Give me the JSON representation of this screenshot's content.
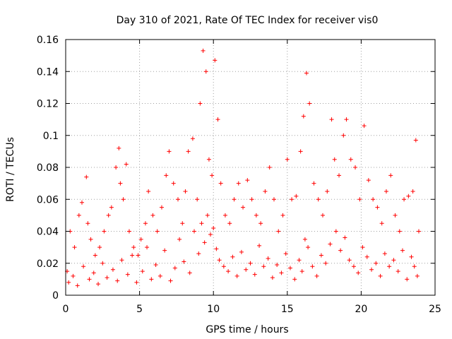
{
  "chart_data": {
    "type": "scatter",
    "title": "Day 310 of 2021, Rate Of TEC Index for receiver vis0",
    "xlabel": "GPS time / hours",
    "ylabel": "ROTI / TECUs",
    "xlim": [
      0,
      25
    ],
    "ylim": [
      0,
      0.16
    ],
    "x_ticks": [
      "0",
      "5",
      "10",
      "15",
      "20",
      "25"
    ],
    "y_ticks": [
      "0",
      "0.02",
      "0.04",
      "0.06",
      "0.08",
      "0.1",
      "0.12",
      "0.14",
      "0.16"
    ],
    "grid": true,
    "marker": "plus",
    "color": "#ff0000",
    "series": [
      {
        "x": [
          0.1,
          0.3,
          0.6,
          0.9,
          1.1,
          1.4,
          1.5,
          1.7,
          2.0,
          2.3,
          2.6,
          2.9,
          3.1,
          3.4,
          3.6,
          3.7,
          3.9,
          4.1,
          4.3,
          4.6,
          4.9,
          5.1,
          5.4,
          5.6,
          5.9,
          6.2,
          6.5,
          6.8,
          7.0,
          7.3,
          7.6,
          7.9,
          8.1,
          8.3,
          8.6,
          8.9,
          9.1,
          9.3,
          9.5,
          9.7,
          9.9,
          10.1,
          10.3,
          10.5,
          10.8,
          11.1,
          11.4,
          11.7,
          12.0,
          12.3,
          12.6,
          12.9,
          13.2,
          13.5,
          13.8,
          14.1,
          14.4,
          14.7,
          15.0,
          15.3,
          15.6,
          15.9,
          16.1,
          16.3,
          16.5,
          16.8,
          17.1,
          17.4,
          17.7,
          18.0,
          18.2,
          18.5,
          18.8,
          19.0,
          19.3,
          19.6,
          19.9,
          20.2,
          20.5,
          20.8,
          21.1,
          21.4,
          21.7,
          22.0,
          22.3,
          22.6,
          22.9,
          23.2,
          23.5,
          23.7,
          23.9,
          0.2,
          0.5,
          0.8,
          1.2,
          1.6,
          1.9,
          2.2,
          2.5,
          2.8,
          3.2,
          3.5,
          3.8,
          4.2,
          4.5,
          4.8,
          5.2,
          5.5,
          5.8,
          6.1,
          6.4,
          6.7,
          7.1,
          7.4,
          7.7,
          8.0,
          8.4,
          8.7,
          9.0,
          9.2,
          9.4,
          9.6,
          9.8,
          10.0,
          10.2,
          10.4,
          10.7,
          11.0,
          11.3,
          11.6,
          11.9,
          12.2,
          12.5,
          12.8,
          13.1,
          13.4,
          13.7,
          14.0,
          14.3,
          14.6,
          14.9,
          15.2,
          15.5,
          15.8,
          16.0,
          16.2,
          16.4,
          16.7,
          17.0,
          17.3,
          17.6,
          17.9,
          18.3,
          18.6,
          18.9,
          19.2,
          19.5,
          19.8,
          20.1,
          20.4,
          20.7,
          21.0,
          21.3,
          21.6,
          21.9,
          22.2,
          22.5,
          22.8,
          23.1,
          23.4,
          23.6,
          23.8
        ],
        "y": [
          0.015,
          0.04,
          0.03,
          0.05,
          0.058,
          0.074,
          0.045,
          0.035,
          0.025,
          0.03,
          0.04,
          0.05,
          0.055,
          0.08,
          0.092,
          0.07,
          0.06,
          0.082,
          0.04,
          0.03,
          0.025,
          0.035,
          0.045,
          0.065,
          0.05,
          0.04,
          0.055,
          0.075,
          0.09,
          0.07,
          0.06,
          0.045,
          0.065,
          0.09,
          0.098,
          0.06,
          0.12,
          0.153,
          0.14,
          0.085,
          0.075,
          0.147,
          0.11,
          0.07,
          0.05,
          0.045,
          0.06,
          0.07,
          0.055,
          0.072,
          0.06,
          0.05,
          0.045,
          0.065,
          0.08,
          0.06,
          0.04,
          0.05,
          0.085,
          0.06,
          0.062,
          0.09,
          0.112,
          0.139,
          0.12,
          0.07,
          0.06,
          0.05,
          0.065,
          0.11,
          0.085,
          0.075,
          0.1,
          0.11,
          0.085,
          0.08,
          0.06,
          0.106,
          0.072,
          0.06,
          0.055,
          0.045,
          0.065,
          0.075,
          0.05,
          0.04,
          0.06,
          0.062,
          0.065,
          0.097,
          0.04,
          0.008,
          0.012,
          0.006,
          0.018,
          0.01,
          0.014,
          0.007,
          0.02,
          0.011,
          0.016,
          0.009,
          0.022,
          0.013,
          0.025,
          0.008,
          0.015,
          0.03,
          0.01,
          0.019,
          0.012,
          0.028,
          0.009,
          0.017,
          0.035,
          0.021,
          0.014,
          0.04,
          0.026,
          0.045,
          0.033,
          0.05,
          0.038,
          0.042,
          0.029,
          0.022,
          0.018,
          0.015,
          0.024,
          0.012,
          0.027,
          0.016,
          0.02,
          0.013,
          0.031,
          0.018,
          0.023,
          0.011,
          0.019,
          0.014,
          0.026,
          0.017,
          0.01,
          0.022,
          0.015,
          0.035,
          0.03,
          0.018,
          0.012,
          0.025,
          0.02,
          0.032,
          0.04,
          0.028,
          0.036,
          0.022,
          0.018,
          0.014,
          0.03,
          0.024,
          0.016,
          0.02,
          0.012,
          0.026,
          0.018,
          0.022,
          0.015,
          0.028,
          0.01,
          0.024,
          0.018,
          0.012
        ]
      }
    ]
  }
}
